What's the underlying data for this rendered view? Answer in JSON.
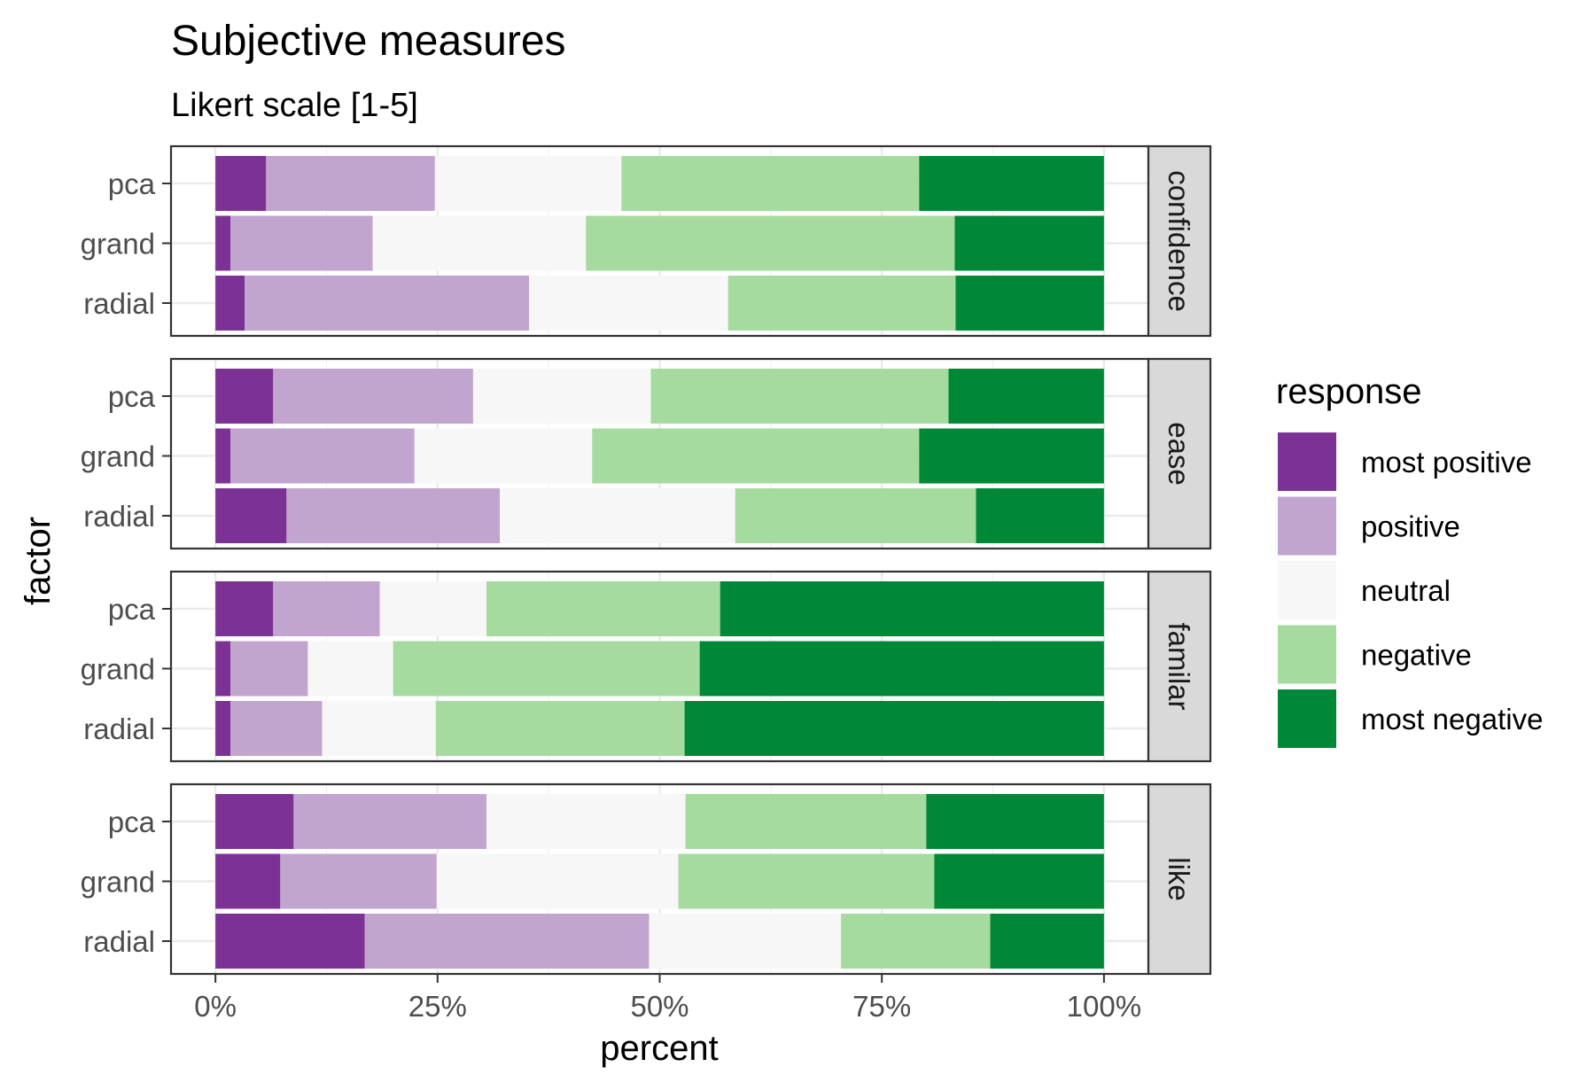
{
  "chart_data": {
    "type": "bar",
    "orientation": "horizontal",
    "stacked": true,
    "title": "Subjective measures",
    "subtitle": "Likert scale [1-5]",
    "xlabel": "percent",
    "ylabel": "factor",
    "xlim": [
      -0.05,
      1.05
    ],
    "x_ticks": [
      0,
      0.25,
      0.5,
      0.75,
      1
    ],
    "x_tick_labels": [
      "0%",
      "25%",
      "50%",
      "75%",
      "100%"
    ],
    "grid": true,
    "legend": {
      "title": "response",
      "position": "right",
      "entries": [
        "most positive",
        "positive",
        "neutral",
        "negative",
        "most negative"
      ]
    },
    "colors": [
      "#7b3294",
      "#c2a5cf",
      "#f7f7f7",
      "#a6dba0",
      "#008837"
    ],
    "categories": [
      "pca",
      "grand",
      "radial"
    ],
    "facets": [
      {
        "label": "confidence",
        "rows": [
          {
            "factor": "pca",
            "values": [
              0.057,
              0.19,
              0.21,
              0.335,
              0.208
            ]
          },
          {
            "factor": "grand",
            "values": [
              0.017,
              0.16,
              0.24,
              0.415,
              0.168
            ]
          },
          {
            "factor": "radial",
            "values": [
              0.033,
              0.32,
              0.224,
              0.256,
              0.167
            ]
          }
        ]
      },
      {
        "label": "ease",
        "rows": [
          {
            "factor": "pca",
            "values": [
              0.065,
              0.225,
              0.2,
              0.335,
              0.175
            ]
          },
          {
            "factor": "grand",
            "values": [
              0.017,
              0.207,
              0.2,
              0.368,
              0.208
            ]
          },
          {
            "factor": "radial",
            "values": [
              0.08,
              0.24,
              0.265,
              0.271,
              0.144
            ]
          }
        ]
      },
      {
        "label": "familar",
        "rows": [
          {
            "factor": "pca",
            "values": [
              0.065,
              0.12,
              0.12,
              0.263,
              0.432
            ]
          },
          {
            "factor": "grand",
            "values": [
              0.017,
              0.087,
              0.096,
              0.345,
              0.455
            ]
          },
          {
            "factor": "radial",
            "values": [
              0.017,
              0.103,
              0.128,
              0.28,
              0.472
            ]
          }
        ]
      },
      {
        "label": "like",
        "rows": [
          {
            "factor": "pca",
            "values": [
              0.088,
              0.217,
              0.224,
              0.271,
              0.2
            ]
          },
          {
            "factor": "grand",
            "values": [
              0.073,
              0.176,
              0.272,
              0.288,
              0.191
            ]
          },
          {
            "factor": "radial",
            "values": [
              0.168,
              0.32,
              0.216,
              0.168,
              0.128
            ]
          }
        ]
      }
    ]
  }
}
